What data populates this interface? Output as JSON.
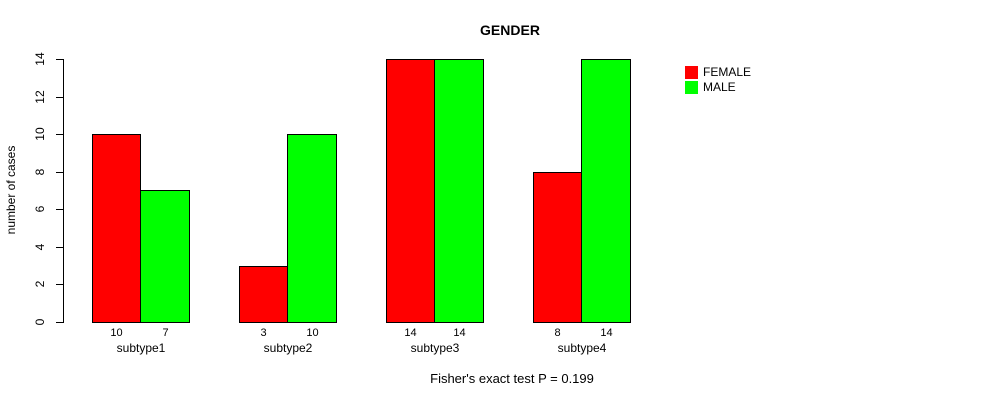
{
  "chart_data": {
    "type": "bar",
    "title": "GENDER",
    "categories": [
      "subtype1",
      "subtype2",
      "subtype3",
      "subtype4"
    ],
    "series": [
      {
        "name": "FEMALE",
        "color": "#FF0000",
        "values": [
          10,
          3,
          14,
          8
        ]
      },
      {
        "name": "MALE",
        "color": "#00FF00",
        "values": [
          7,
          10,
          14,
          14
        ]
      }
    ],
    "bar_value_labels": [
      [
        10,
        7
      ],
      [
        3,
        10
      ],
      [
        14,
        14
      ],
      [
        8,
        14
      ]
    ],
    "ylabel": "number of cases",
    "xlabel": "",
    "ylim": [
      0,
      14
    ],
    "yticks": [
      0,
      2,
      4,
      6,
      8,
      10,
      12,
      14
    ],
    "grid": false,
    "legend_position": "top-right",
    "bar_border_color": "#000000",
    "background_color": "#ffffff",
    "footnote": "Fisher's exact test P = 0.199"
  }
}
